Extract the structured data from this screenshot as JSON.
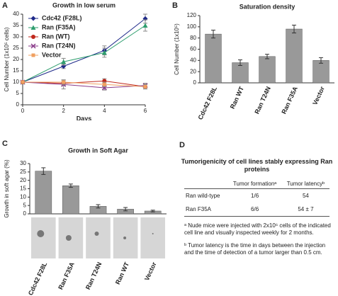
{
  "panels": [
    "A",
    "B",
    "C",
    "D"
  ],
  "chart_data": [
    {
      "type": "line",
      "title": "Growth in low serum",
      "x_label": "Days",
      "y_label": "Cell Number (1x10⁵ cells)",
      "x": [
        0,
        2,
        4,
        6
      ],
      "xlim": [
        0,
        6
      ],
      "xticks": [
        0,
        2,
        4,
        6
      ],
      "ylim": [
        0,
        40
      ],
      "yticks": [
        0,
        5,
        10,
        15,
        20,
        25,
        30,
        35,
        40
      ],
      "legend": "upper left",
      "series": [
        {
          "name": "Cdc42 (F28L)",
          "color": "#1f2a8a",
          "marker": "diamond",
          "values": [
            10,
            17,
            24,
            38
          ],
          "errors": [
            0.5,
            1,
            2,
            2
          ]
        },
        {
          "name": "Ran (F35A)",
          "color": "#2e9e6e",
          "marker": "triangle",
          "values": [
            10,
            19,
            23,
            35
          ],
          "errors": [
            0.5,
            1.5,
            2,
            2.5
          ]
        },
        {
          "name": "Ran (WT)",
          "color": "#c0281c",
          "marker": "circle",
          "values": [
            10,
            9.5,
            10.5,
            8
          ],
          "errors": [
            0.5,
            1,
            1,
            1
          ]
        },
        {
          "name": "Ran (T24N)",
          "color": "#8a3a8a",
          "marker": "x",
          "values": [
            10,
            9,
            7.5,
            8.5
          ],
          "errors": [
            0.5,
            2,
            1,
            1
          ]
        },
        {
          "name": "Vector",
          "color": "#f0a060",
          "marker": "square",
          "values": [
            10,
            10,
            9,
            8
          ],
          "errors": [
            0.5,
            1,
            1,
            1
          ]
        }
      ]
    },
    {
      "type": "bar",
      "title": "Saturation density",
      "y_label": "Cell Number (1x10⁵)",
      "color": "#999999",
      "categories": [
        "Cdc42 F28L",
        "Ran WT",
        "Ran T24N",
        "Ran F35A",
        "Vector"
      ],
      "values": [
        87,
        36,
        47,
        96,
        40
      ],
      "errors": [
        7,
        5,
        4,
        7,
        5
      ],
      "ylim": [
        0,
        120
      ],
      "yticks": [
        0,
        20,
        40,
        60,
        80,
        100,
        120
      ]
    },
    {
      "type": "bar",
      "title": "Growth in Soft Agar",
      "y_label": "Growth in soft agar (%)",
      "color": "#999999",
      "categories": [
        "Cdc42  F28L",
        "Ran F35A",
        "Ran T24N",
        "Ran WT",
        "Vector"
      ],
      "values": [
        25.5,
        16.8,
        4.5,
        2.8,
        1.7
      ],
      "errors": [
        2,
        1,
        1,
        1,
        0.5
      ],
      "ylim": [
        0,
        30
      ],
      "yticks": [
        0,
        5,
        10,
        15,
        20,
        25,
        30
      ]
    }
  ],
  "table": {
    "title": "Tumorigenicity of cell lines stably expressing Ran proteins",
    "columns": [
      "Tumor formationᵃ",
      "Tumor latencyᵇ"
    ],
    "rows": [
      [
        "Ran wild-type",
        "1/6",
        "54"
      ],
      [
        "Ran F35A",
        "6/6",
        "54 ± 7"
      ]
    ],
    "notes": [
      "ᵃ Nude mice were injected with 2x10⁶ cells of the indicated cell line and visually inspected weekly for 2 months.",
      "ᵇ Tumor latency is the time in days between the injection and the time of detection of a tumor larger than 0.5 cm."
    ]
  }
}
